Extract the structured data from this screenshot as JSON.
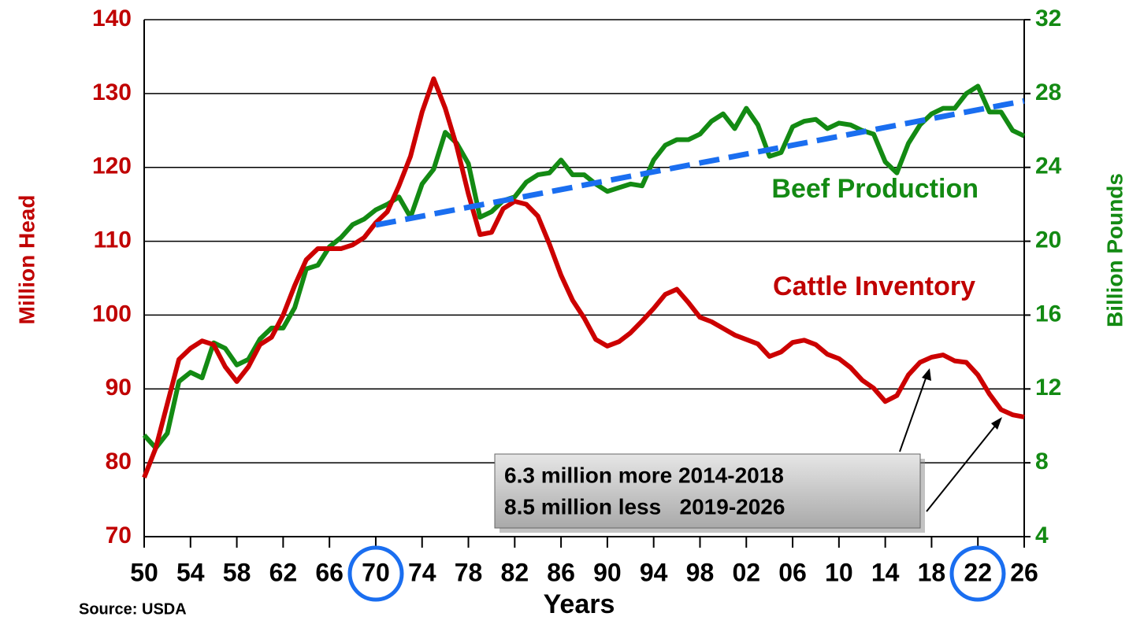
{
  "chart_data": {
    "type": "line",
    "y_label": "Million Head",
    "y2_label": "Billion Pounds",
    "x_label": "Years",
    "source": "Source: USDA",
    "x": [
      1950,
      1951,
      1952,
      1953,
      1954,
      1955,
      1956,
      1957,
      1958,
      1959,
      1960,
      1961,
      1962,
      1963,
      1964,
      1965,
      1966,
      1967,
      1968,
      1969,
      1970,
      1971,
      1972,
      1973,
      1974,
      1975,
      1976,
      1977,
      1978,
      1979,
      1980,
      1981,
      1982,
      1983,
      1984,
      1985,
      1986,
      1987,
      1988,
      1989,
      1990,
      1991,
      1992,
      1993,
      1994,
      1995,
      1996,
      1997,
      1998,
      1999,
      2000,
      2001,
      2002,
      2003,
      2004,
      2005,
      2006,
      2007,
      2008,
      2009,
      2010,
      2011,
      2012,
      2013,
      2014,
      2015,
      2016,
      2017,
      2018,
      2019,
      2020,
      2021,
      2022,
      2023,
      2024,
      2025,
      2026
    ],
    "series": [
      {
        "name": "Cattle Inventory",
        "color": "#cc0000",
        "axis": "y",
        "values": [
          78,
          82,
          88,
          94,
          95.5,
          96.5,
          96,
          93,
          91,
          93,
          96,
          97,
          100,
          104,
          107.5,
          109,
          109,
          109,
          109.5,
          110.5,
          112.5,
          114,
          117.5,
          121.5,
          127.5,
          132,
          128,
          122.8,
          116.4,
          110.9,
          111.2,
          114.4,
          115.4,
          115,
          113.4,
          109.6,
          105.4,
          102,
          99.6,
          96.7,
          95.8,
          96.4,
          97.6,
          99.2,
          100.9,
          102.8,
          103.5,
          101.7,
          99.7,
          99.1,
          98.2,
          97.3,
          96.7,
          96.1,
          94.4,
          95,
          96.3,
          96.6,
          96,
          94.7,
          94.1,
          92.9,
          91.2,
          90.1,
          88.3,
          89.1,
          91.9,
          93.6,
          94.3,
          94.6,
          93.8,
          93.6,
          91.9,
          89.3,
          87.2,
          86.5,
          86.2
        ]
      },
      {
        "name": "Beef Production",
        "color": "#138a13",
        "axis": "y2",
        "values": [
          9.5,
          8.8,
          9.6,
          12.4,
          12.9,
          12.6,
          14.5,
          14.2,
          13.3,
          13.6,
          14.7,
          15.3,
          15.3,
          16.4,
          18.5,
          18.7,
          19.7,
          20.2,
          20.9,
          21.2,
          21.7,
          22,
          22.4,
          21.3,
          23.1,
          23.9,
          25.9,
          25.3,
          24.2,
          21.3,
          21.6,
          22.2,
          22.4,
          23.2,
          23.6,
          23.7,
          24.4,
          23.6,
          23.6,
          23.1,
          22.7,
          22.9,
          23.1,
          23,
          24.4,
          25.2,
          25.5,
          25.5,
          25.8,
          26.5,
          26.9,
          26.1,
          27.2,
          26.3,
          24.6,
          24.8,
          26.2,
          26.5,
          26.6,
          26.1,
          26.4,
          26.3,
          26,
          25.8,
          24.3,
          23.7,
          25.3,
          26.3,
          26.9,
          27.2,
          27.2,
          28,
          28.4,
          27,
          27,
          26,
          25.7
        ]
      }
    ],
    "trend": {
      "x": [
        1970,
        2026
      ],
      "values": [
        112.2,
        129
      ],
      "color": "#1a6ef0"
    },
    "annotation_lines": [
      "6.3 million more 2014-2018",
      "8.5 million less   2019-2026"
    ],
    "xlim": [
      1950,
      2026
    ],
    "xticks": [
      {
        "value": 1950,
        "label": "50"
      },
      {
        "value": 1954,
        "label": "54"
      },
      {
        "value": 1958,
        "label": "58"
      },
      {
        "value": 1962,
        "label": "62"
      },
      {
        "value": 1966,
        "label": "66"
      },
      {
        "value": 1970,
        "label": "70"
      },
      {
        "value": 1974,
        "label": "74"
      },
      {
        "value": 1978,
        "label": "78"
      },
      {
        "value": 1982,
        "label": "82"
      },
      {
        "value": 1986,
        "label": "86"
      },
      {
        "value": 1990,
        "label": "90"
      },
      {
        "value": 1994,
        "label": "94"
      },
      {
        "value": 1998,
        "label": "98"
      },
      {
        "value": 2002,
        "label": "02"
      },
      {
        "value": 2006,
        "label": "06"
      },
      {
        "value": 2010,
        "label": "10"
      },
      {
        "value": 2014,
        "label": "14"
      },
      {
        "value": 2018,
        "label": "18"
      },
      {
        "value": 2022,
        "label": "22"
      },
      {
        "value": 2026,
        "label": "26"
      }
    ],
    "ylim": [
      70,
      140
    ],
    "yticks": [
      70,
      80,
      90,
      100,
      110,
      120,
      130,
      140
    ],
    "y2lim": [
      4,
      32
    ],
    "y2ticks": [
      4,
      8,
      12,
      16,
      20,
      24,
      28,
      32
    ],
    "grid": true
  }
}
